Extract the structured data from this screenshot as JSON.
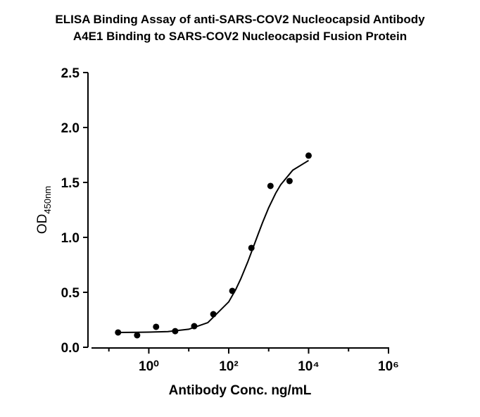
{
  "chart_data": {
    "type": "scatter",
    "title": [
      "ELISA Binding Assay of anti-SARS-COV2 Nucleocapsid Antibody",
      "A4E1 Binding to SARS-COV2 Nucleocapsid Fusion Protein"
    ],
    "x_label": "Antibody Conc. ng/mL",
    "y_label": "OD",
    "y_label_subscript": "450nm",
    "x_log": true,
    "xlim": [
      0.03,
      1000000
    ],
    "xticks": [
      {
        "value": 1,
        "label": "10⁰"
      },
      {
        "value": 100,
        "label": "10²"
      },
      {
        "value": 10000,
        "label": "10⁴"
      },
      {
        "value": 1000000,
        "label": "10⁶"
      }
    ],
    "x_minor_ticks": [
      0.1,
      10,
      1000,
      100000
    ],
    "ylim": [
      0,
      2.5
    ],
    "yticks": [
      {
        "value": 0,
        "label": "0.0"
      },
      {
        "value": 0.5,
        "label": "0.5"
      },
      {
        "value": 1,
        "label": "1.0"
      },
      {
        "value": 1.5,
        "label": "1.5"
      },
      {
        "value": 2,
        "label": "2.0"
      },
      {
        "value": 2.5,
        "label": "2.5"
      }
    ],
    "color": "#000000",
    "x": [
      0.17,
      0.51,
      1.52,
      4.57,
      13.7,
      41.2,
      123,
      370,
      1111,
      3333,
      10000
    ],
    "values": [
      0.135,
      0.109,
      0.186,
      0.147,
      0.192,
      0.301,
      0.513,
      0.904,
      1.468,
      1.513,
      1.744
    ],
    "fit": {
      "x": [
        0.17,
        0.5,
        1,
        3,
        10,
        30,
        100,
        150,
        200,
        300,
        400,
        550,
        700,
        1000,
        1500,
        2000,
        4000,
        10000
      ],
      "values": [
        0.135,
        0.136,
        0.138,
        0.143,
        0.164,
        0.224,
        0.413,
        0.525,
        0.622,
        0.777,
        0.898,
        1.033,
        1.133,
        1.27,
        1.402,
        1.479,
        1.611,
        1.7
      ]
    }
  }
}
